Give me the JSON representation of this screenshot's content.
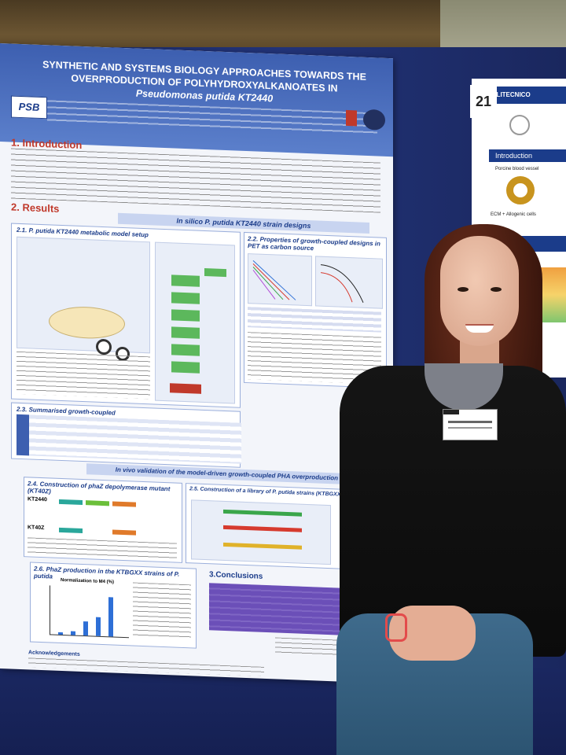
{
  "poster": {
    "title_line1": "SYNTHETIC AND SYSTEMS BIOLOGY APPROACHES TOWARDS THE",
    "title_line2": "OVERPRODUCTION OF POLYHYDROXYALKANOATES IN",
    "title_line3": "Pseudomonas putida KT2440",
    "logo": "PSB",
    "section1": "1. Introduction",
    "section2": "2. Results",
    "insilico_bar": "In silico P. putida KT2440 strain designs",
    "s21": "2.1. P. putida KT2440 metabolic model setup",
    "s22": "2.2. Properties of growth-coupled designs in PET as carbon source",
    "s23": "2.3. Summarised growth-coupled",
    "invivo_bar": "In vivo validation of the model-driven growth-coupled PHA overproduction desig",
    "s24": "2.4. Construction of phaZ depolymerase mutant (KT40Z)",
    "s25": "2.5. Construction of a library of P. putida strains (KTBGXX) with tune",
    "s26": "2.6. PhaZ production in the KTBGXX strains of P. putida",
    "s3": "3.Conclusions",
    "strain_a": "KT2440",
    "strain_b": "KT40Z",
    "chart_title": "Normalization to M4 (%)",
    "ack": "Acknowledgements"
  },
  "poster2": {
    "number": "21",
    "header": "POLITECNICO",
    "intro": "Introduction",
    "caption1": "Porcine blood vessel",
    "caption2": "ECM + Allogenic cells"
  },
  "colors": {
    "board": "#1d2d6a",
    "poster_header": "#3d5fb0",
    "section_red": "#c0392b",
    "conclusion_purple": "#6b4fb8"
  }
}
